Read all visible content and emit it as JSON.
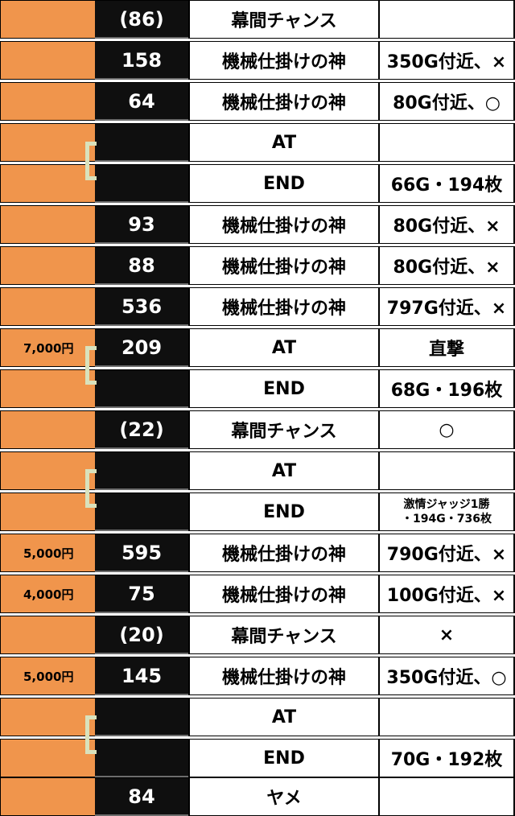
{
  "rows": [
    {
      "money": "",
      "games": "(86)",
      "event": "幕間チャンス",
      "result": ""
    },
    {
      "money": "",
      "games": "158",
      "event": "機械仕掛けの神",
      "result": "350G付近、×"
    },
    {
      "money": "",
      "games": "64",
      "event": "機械仕掛けの神",
      "result": "80G付近、○"
    },
    {
      "money": "",
      "games": "",
      "event": "AT",
      "result": ""
    },
    {
      "money": "",
      "games": "",
      "event": "END",
      "result": "66G・194枚"
    },
    {
      "money": "",
      "games": "93",
      "event": "機械仕掛けの神",
      "result": "80G付近、×"
    },
    {
      "money": "",
      "games": "88",
      "event": "機械仕掛けの神",
      "result": "80G付近、×"
    },
    {
      "money": "",
      "games": "536",
      "event": "機械仕掛けの神",
      "result": "797G付近、×"
    },
    {
      "money": "7,000円",
      "games": "209",
      "event": "AT",
      "result": "直撃"
    },
    {
      "money": "",
      "games": "",
      "event": "END",
      "result": "68G・196枚"
    },
    {
      "money": "",
      "games": "(22)",
      "event": "幕間チャンス",
      "result": "○"
    },
    {
      "money": "",
      "games": "",
      "event": "AT",
      "result": ""
    },
    {
      "money": "",
      "games": "",
      "event": "END",
      "result_line1": "激情ジャッジ1勝",
      "result_line2": "・194G・736枚"
    },
    {
      "money": "5,000円",
      "games": "595",
      "event": "機械仕掛けの神",
      "result": "790G付近、×"
    },
    {
      "money": "4,000円",
      "games": "75",
      "event": "機械仕掛けの神",
      "result": "100G付近、×"
    },
    {
      "money": "",
      "games": "(20)",
      "event": "幕間チャンス",
      "result": "×"
    },
    {
      "money": "5,000円",
      "games": "145",
      "event": "機械仕掛けの神",
      "result": "350G付近、○"
    },
    {
      "money": "",
      "games": "",
      "event": "AT",
      "result": ""
    },
    {
      "money": "",
      "games": "",
      "event": "END",
      "result": "70G・192枚"
    },
    {
      "money": "",
      "games": "84",
      "event": "ヤメ",
      "result": ""
    }
  ]
}
